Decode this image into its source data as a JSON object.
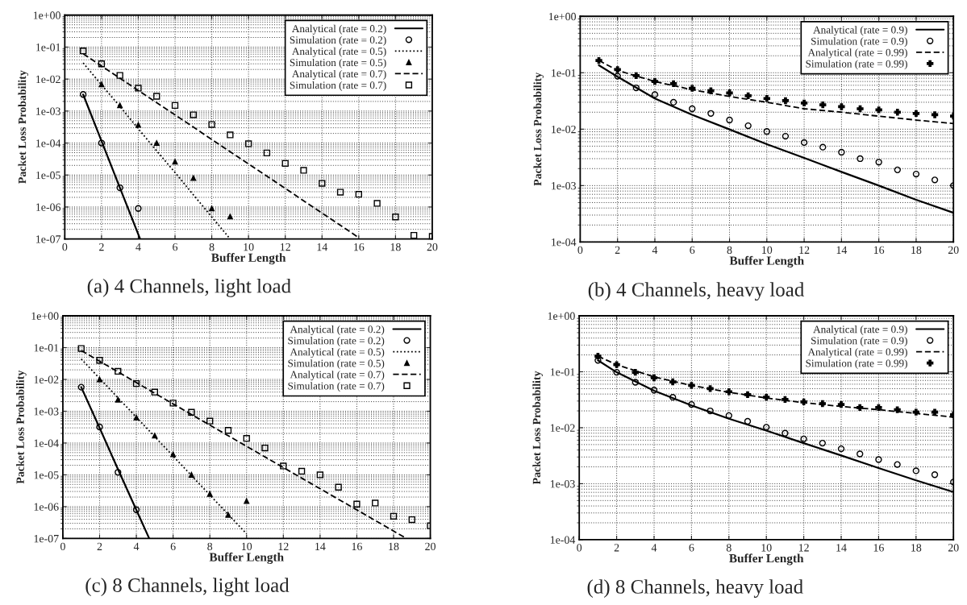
{
  "chart_data": [
    {
      "type": "line",
      "title": "(a) 4 Channels, light load",
      "xlabel": "Buffer Length",
      "ylabel": "Packet Loss Probability",
      "xlim": [
        0,
        20
      ],
      "xticks": [
        0,
        2,
        4,
        6,
        8,
        10,
        12,
        14,
        16,
        18,
        20
      ],
      "ylim": [
        1e-07,
        1
      ],
      "yticks": [
        {
          "value": 1e-07,
          "label": "1e-07"
        },
        {
          "value": 1e-06,
          "label": "1e-06"
        },
        {
          "value": 1e-05,
          "label": "1e-05"
        },
        {
          "value": 0.0001,
          "label": "1e-04"
        },
        {
          "value": 0.001,
          "label": "1e-03"
        },
        {
          "value": 0.01,
          "label": "1e-02"
        },
        {
          "value": 0.1,
          "label": "1e-01"
        },
        {
          "value": 1,
          "label": "1e+00"
        }
      ],
      "log": "y",
      "grid": true,
      "legend": "top right",
      "series": [
        {
          "name": "Analytical (rate = 0.2)",
          "type": "line",
          "line_style": "solid",
          "color": "#000000",
          "x": [
            1,
            2,
            3,
            4,
            4.1
          ],
          "values": [
            0.0033,
            0.000115,
            4e-06,
            1.4e-07,
            1e-07
          ]
        },
        {
          "name": "Simulation (rate = 0.2)",
          "type": "scatter",
          "marker": "circle",
          "color": "#000000",
          "x": [
            1,
            2,
            3,
            4
          ],
          "values": [
            0.0033,
            0.0001,
            4e-06,
            9e-07
          ]
        },
        {
          "name": "Analytical (rate = 0.5)",
          "type": "line",
          "line_style": "dotted",
          "color": "#000000",
          "x": [
            1,
            2,
            3,
            4,
            5,
            6,
            7,
            8,
            9
          ],
          "values": [
            0.032,
            0.0066,
            0.0014,
            0.00028,
            5.7e-05,
            1.2e-05,
            2.4e-06,
            4.9e-07,
            1e-07
          ]
        },
        {
          "name": "Simulation (rate = 0.5)",
          "type": "scatter",
          "marker": "triangle",
          "color": "#000000",
          "x": [
            2,
            3,
            4,
            5,
            6,
            7,
            8,
            9
          ],
          "values": [
            0.0068,
            0.0015,
            0.00037,
            0.0001,
            2.6e-05,
            8e-06,
            9e-07,
            5e-07
          ]
        },
        {
          "name": "Analytical (rate = 0.7)",
          "type": "line",
          "line_style": "dashed",
          "color": "#000000",
          "x": [
            1,
            4,
            8,
            12,
            16
          ],
          "values": [
            0.062,
            0.0044,
            0.00013,
            3.8e-06,
            1.1e-07
          ]
        },
        {
          "name": "Simulation (rate = 0.7)",
          "type": "scatter",
          "marker": "square",
          "color": "#000000",
          "x": [
            1,
            2,
            3,
            4,
            5,
            6,
            7,
            8,
            9,
            10,
            11,
            12,
            13,
            14,
            15,
            16,
            17,
            18,
            19,
            20
          ],
          "values": [
            0.076,
            0.03,
            0.013,
            0.0052,
            0.0029,
            0.0015,
            0.00076,
            0.00038,
            0.00018,
            9.5e-05,
            4.9e-05,
            2.3e-05,
            1.4e-05,
            5.5e-06,
            2.9e-06,
            2.5e-06,
            1.3e-06,
            4.9e-07,
            1.3e-07,
            1.2e-07
          ]
        }
      ]
    },
    {
      "type": "line",
      "title": "(b) 4 Channels, heavy load",
      "xlabel": "Buffer Length",
      "ylabel": "Packet Loss Probability",
      "xlim": [
        0,
        20
      ],
      "xticks": [
        0,
        2,
        4,
        6,
        8,
        10,
        12,
        14,
        16,
        18,
        20
      ],
      "ylim": [
        0.0001,
        1
      ],
      "yticks": [
        {
          "value": 0.0001,
          "label": "1e-04"
        },
        {
          "value": 0.001,
          "label": "1e-03"
        },
        {
          "value": 0.01,
          "label": "1e-02"
        },
        {
          "value": 0.1,
          "label": "1e-01"
        },
        {
          "value": 1,
          "label": "1e+00"
        }
      ],
      "log": "y",
      "grid": true,
      "legend": "top right",
      "series": [
        {
          "name": "Analytical (rate = 0.9)",
          "type": "line",
          "line_style": "solid",
          "color": "#000000",
          "x": [
            1,
            2,
            4,
            6,
            8,
            10,
            12,
            14,
            16,
            18,
            20
          ],
          "values": [
            0.136,
            0.085,
            0.035,
            0.018,
            0.0099,
            0.0054,
            0.0031,
            0.00175,
            0.001,
            0.00056,
            0.00033
          ]
        },
        {
          "name": "Simulation (rate = 0.9)",
          "type": "scatter",
          "marker": "circle",
          "color": "#000000",
          "x": [
            2,
            3,
            4,
            5,
            6,
            7,
            8,
            9,
            10,
            11,
            12,
            13,
            14,
            15,
            16,
            17,
            18,
            19,
            20
          ],
          "values": [
            0.087,
            0.054,
            0.041,
            0.03,
            0.023,
            0.019,
            0.0145,
            0.0115,
            0.0091,
            0.0075,
            0.0058,
            0.0048,
            0.0039,
            0.003,
            0.0026,
            0.0019,
            0.0016,
            0.00126,
            0.001
          ]
        },
        {
          "name": "Analytical (rate = 0.99)",
          "type": "line",
          "line_style": "dashed",
          "color": "#000000",
          "x": [
            1,
            2,
            4,
            6,
            8,
            10,
            12,
            14,
            16,
            18,
            20
          ],
          "values": [
            0.165,
            0.11,
            0.07,
            0.05,
            0.038,
            0.03,
            0.023,
            0.02,
            0.017,
            0.0145,
            0.0126
          ]
        },
        {
          "name": "Simulation (rate = 0.99)",
          "type": "scatter",
          "marker": "cross",
          "color": "#000000",
          "x": [
            1,
            2,
            3,
            4,
            5,
            6,
            7,
            8,
            9,
            10,
            11,
            12,
            13,
            14,
            15,
            16,
            17,
            18,
            19,
            20
          ],
          "values": [
            0.165,
            0.114,
            0.089,
            0.07,
            0.064,
            0.053,
            0.048,
            0.044,
            0.039,
            0.035,
            0.032,
            0.029,
            0.027,
            0.025,
            0.023,
            0.022,
            0.02,
            0.019,
            0.018,
            0.017
          ]
        }
      ]
    },
    {
      "type": "line",
      "title": "(c) 8 Channels, light load",
      "xlabel": "Buffer Length",
      "ylabel": "Packet Loss Probability",
      "xlim": [
        0,
        20
      ],
      "xticks": [
        0,
        2,
        4,
        6,
        8,
        10,
        12,
        14,
        16,
        18,
        20
      ],
      "ylim": [
        1e-07,
        1
      ],
      "yticks": [
        {
          "value": 1e-07,
          "label": "1e-07"
        },
        {
          "value": 1e-06,
          "label": "1e-06"
        },
        {
          "value": 1e-05,
          "label": "1e-05"
        },
        {
          "value": 0.0001,
          "label": "1e-04"
        },
        {
          "value": 0.001,
          "label": "1e-03"
        },
        {
          "value": 0.01,
          "label": "1e-02"
        },
        {
          "value": 0.1,
          "label": "1e-01"
        },
        {
          "value": 1,
          "label": "1e+00"
        }
      ],
      "log": "y",
      "grid": true,
      "legend": "top right",
      "series": [
        {
          "name": "Analytical (rate = 0.2)",
          "type": "line",
          "line_style": "solid",
          "color": "#000000",
          "x": [
            1,
            2,
            3,
            4,
            4.7
          ],
          "values": [
            0.0057,
            0.0003,
            1.5e-05,
            7.9e-07,
            1e-07
          ]
        },
        {
          "name": "Simulation (rate = 0.2)",
          "type": "scatter",
          "marker": "circle",
          "color": "#000000",
          "x": [
            1,
            2,
            3,
            4
          ],
          "values": [
            0.0057,
            0.00032,
            1.2e-05,
            8e-07
          ]
        },
        {
          "name": "Analytical (rate = 0.5)",
          "type": "line",
          "line_style": "dotted",
          "color": "#000000",
          "x": [
            1,
            4,
            7,
            10
          ],
          "values": [
            0.044,
            0.00065,
            9.5e-06,
            1.4e-07
          ]
        },
        {
          "name": "Simulation (rate = 0.5)",
          "type": "scatter",
          "marker": "triangle",
          "color": "#000000",
          "x": [
            2,
            3,
            4,
            5,
            6,
            7,
            8,
            9,
            10
          ],
          "values": [
            0.01,
            0.0023,
            0.00063,
            0.00017,
            4.4e-05,
            1e-05,
            2.5e-06,
            5.5e-07,
            1.5e-06
          ]
        },
        {
          "name": "Analytical (rate = 0.7)",
          "type": "line",
          "line_style": "dashed",
          "color": "#000000",
          "x": [
            1,
            6,
            12,
            18.7
          ],
          "values": [
            0.081,
            0.0017,
            1.7e-05,
            1e-07
          ]
        },
        {
          "name": "Simulation (rate = 0.7)",
          "type": "scatter",
          "marker": "square",
          "color": "#000000",
          "x": [
            1,
            2,
            3,
            4,
            5,
            6,
            7,
            8,
            9,
            10,
            11,
            12,
            13,
            14,
            15,
            16,
            17,
            18,
            19,
            20
          ],
          "values": [
            0.094,
            0.04,
            0.018,
            0.0074,
            0.004,
            0.0018,
            0.00093,
            0.00049,
            0.00025,
            0.00014,
            7e-05,
            1.9e-05,
            1.3e-05,
            1e-05,
            4.1e-06,
            1.2e-06,
            1.3e-06,
            5e-07,
            3.9e-07,
            2.5e-07
          ]
        }
      ]
    },
    {
      "type": "line",
      "title": "(d) 8 Channels, heavy load",
      "xlabel": "Buffer Length",
      "ylabel": "Packet Loss Probability",
      "xlim": [
        0,
        20
      ],
      "xticks": [
        0,
        2,
        4,
        6,
        8,
        10,
        12,
        14,
        16,
        18,
        20
      ],
      "ylim": [
        0.0001,
        1
      ],
      "yticks": [
        {
          "value": 0.0001,
          "label": "1e-04"
        },
        {
          "value": 0.001,
          "label": "1e-03"
        },
        {
          "value": 0.01,
          "label": "1e-02"
        },
        {
          "value": 0.1,
          "label": "1e-01"
        },
        {
          "value": 1,
          "label": "1e+00"
        }
      ],
      "log": "y",
      "grid": true,
      "legend": "top right",
      "series": [
        {
          "name": "Analytical (rate = 0.9)",
          "type": "line",
          "line_style": "solid",
          "color": "#000000",
          "x": [
            1,
            2,
            4,
            6,
            8,
            10,
            12,
            14,
            16,
            18,
            20
          ],
          "values": [
            0.16,
            0.098,
            0.046,
            0.025,
            0.0145,
            0.0089,
            0.0053,
            0.0032,
            0.0019,
            0.00115,
            0.00071
          ]
        },
        {
          "name": "Simulation (rate = 0.9)",
          "type": "scatter",
          "marker": "circle",
          "color": "#000000",
          "x": [
            1,
            2,
            3,
            4,
            5,
            6,
            7,
            8,
            9,
            10,
            11,
            12,
            13,
            14,
            15,
            16,
            17,
            18,
            19,
            20
          ],
          "values": [
            0.16,
            0.098,
            0.065,
            0.047,
            0.035,
            0.026,
            0.02,
            0.0165,
            0.013,
            0.0102,
            0.008,
            0.0063,
            0.0053,
            0.0042,
            0.0034,
            0.0027,
            0.0022,
            0.0017,
            0.00145,
            0.00107
          ]
        },
        {
          "name": "Analytical (rate = 0.99)",
          "type": "line",
          "line_style": "dashed",
          "color": "#000000",
          "x": [
            1,
            2,
            4,
            6,
            8,
            10,
            12,
            14,
            16,
            18,
            20
          ],
          "values": [
            0.19,
            0.134,
            0.081,
            0.057,
            0.043,
            0.034,
            0.028,
            0.024,
            0.021,
            0.018,
            0.0155
          ]
        },
        {
          "name": "Simulation (rate = 0.99)",
          "type": "scatter",
          "marker": "cross",
          "color": "#000000",
          "x": [
            1,
            2,
            3,
            4,
            5,
            6,
            7,
            8,
            9,
            10,
            11,
            12,
            13,
            14,
            15,
            16,
            17,
            18,
            19,
            20
          ],
          "values": [
            0.19,
            0.134,
            0.098,
            0.078,
            0.066,
            0.057,
            0.05,
            0.044,
            0.039,
            0.035,
            0.032,
            0.029,
            0.027,
            0.026,
            0.023,
            0.023,
            0.021,
            0.019,
            0.019,
            0.017
          ]
        }
      ]
    }
  ]
}
